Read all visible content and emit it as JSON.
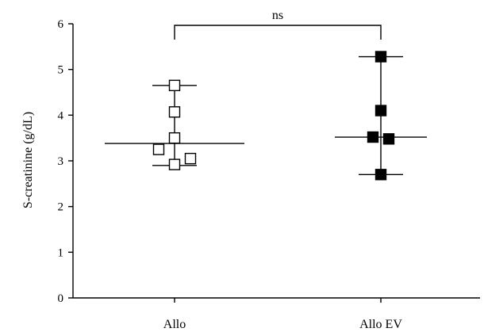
{
  "chart_data": {
    "type": "scatter",
    "title": "",
    "xlabel": "",
    "ylabel": "S-creatinine (g/dL)",
    "ylim": [
      0,
      6
    ],
    "yticks": [
      0,
      1,
      2,
      3,
      4,
      5,
      6
    ],
    "grid": false,
    "legend": "none",
    "categories": [
      "Allo",
      "Allo EV"
    ],
    "groups": [
      {
        "category": "Allo",
        "marker": "open-square",
        "values": [
          4.65,
          4.07,
          3.5,
          3.25,
          3.05,
          2.92
        ],
        "median": 3.38,
        "range_low": 2.9,
        "range_high": 4.65
      },
      {
        "category": "Allo EV",
        "marker": "filled-square",
        "values": [
          5.28,
          4.1,
          3.52,
          3.48,
          2.7
        ],
        "median": 3.52,
        "range_low": 2.7,
        "range_high": 5.28
      }
    ],
    "annotation": {
      "text": "ns",
      "between": [
        "Allo",
        "Allo EV"
      ]
    }
  }
}
